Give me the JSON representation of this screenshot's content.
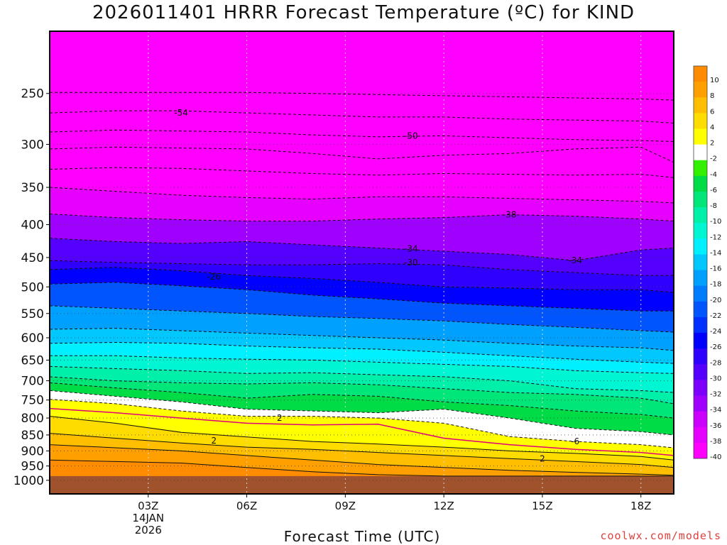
{
  "header": {
    "title": "2026011401 HRRR Forecast Temperature (ºC) for KIND"
  },
  "footer": {
    "xlabel": "Forecast Time (UTC)",
    "credit": "coolwx.com/models"
  },
  "colors": {
    "ground": "#a0522d",
    "bands": [
      "#ff00ff",
      "#e600ff",
      "#cc00ff",
      "#a000ff",
      "#7d00ff",
      "#5500ff",
      "#3000ff",
      "#0000ff",
      "#0030ff",
      "#0055ff",
      "#007dff",
      "#00a0ff",
      "#00c8ff",
      "#00f0ff",
      "#00f5d2",
      "#00f0aa",
      "#00e678",
      "#00dc46",
      "#32f000",
      "#ffffff",
      "#ffff00",
      "#ffdc00",
      "#ffbe00",
      "#ffa000",
      "#ff8c00"
    ]
  },
  "chart_data": {
    "type": "heatmap",
    "title": "2026011401 HRRR Forecast Temperature (ºC) for KIND",
    "xlabel": "Forecast Time (UTC)",
    "ylabel": "",
    "x_ticks": [
      "03Z",
      "06Z",
      "09Z",
      "12Z",
      "15Z",
      "18Z"
    ],
    "x_tick_hours": [
      3,
      6,
      9,
      12,
      15,
      18
    ],
    "x_date_label": [
      "14JAN",
      "2026"
    ],
    "xlim": [
      0,
      19
    ],
    "y_ticks": [
      250,
      300,
      350,
      400,
      450,
      500,
      550,
      600,
      650,
      700,
      750,
      800,
      850,
      900,
      950,
      1000
    ],
    "ylim": [
      1050,
      200
    ],
    "y_scale": "log",
    "grid": true,
    "colorbar": {
      "labels": [
        10,
        8,
        6,
        4,
        2,
        -2,
        -4,
        -6,
        -8,
        -10,
        -12,
        -14,
        -16,
        -18,
        -20,
        -22,
        -24,
        -26,
        -28,
        -30,
        -32,
        -34,
        -36,
        -38,
        -40
      ]
    },
    "ground_level_hpa": 985,
    "forecast_hours": [
      0,
      2,
      4,
      6,
      8,
      10,
      12,
      14,
      16,
      18,
      19
    ],
    "isotherms": [
      {
        "temp": -55,
        "pressure": [
          249,
          249,
          249,
          249,
          250,
          251,
          252,
          253,
          254,
          255,
          256
        ]
      },
      {
        "temp": -54,
        "pressure": [
          268,
          266,
          266,
          268,
          270,
          272,
          272,
          274,
          275,
          276,
          278
        ]
      },
      {
        "temp": -50,
        "pressure": [
          287,
          285,
          286,
          287,
          290,
          292,
          291,
          293,
          295,
          296,
          297
        ]
      },
      {
        "temp": -48,
        "pressure": [
          305,
          303,
          304,
          305,
          310,
          316,
          312,
          310,
          305,
          303,
          320
        ]
      },
      {
        "temp": -44,
        "pressure": [
          328,
          326,
          327,
          330,
          333,
          335,
          333,
          334,
          335,
          334,
          338
        ]
      },
      {
        "temp": -42,
        "pressure": [
          350,
          355,
          360,
          363,
          365,
          362,
          362,
          364,
          366,
          368,
          370
        ]
      },
      {
        "temp": -38,
        "pressure": [
          385,
          390,
          393,
          395,
          395,
          392,
          390,
          386,
          388,
          392,
          395
        ]
      },
      {
        "temp": -34,
        "pressure": [
          420,
          425,
          428,
          425,
          430,
          435,
          440,
          445,
          455,
          438,
          435
        ]
      },
      {
        "temp": -30,
        "pressure": [
          455,
          458,
          460,
          462,
          462,
          460,
          462,
          470,
          475,
          480,
          480
        ]
      },
      {
        "temp": -28,
        "pressure": [
          470,
          466,
          472,
          480,
          485,
          492,
          500,
          502,
          505,
          505,
          510
        ]
      },
      {
        "temp": -26,
        "pressure": [
          495,
          492,
          498,
          505,
          515,
          522,
          530,
          535,
          540,
          545,
          545
        ]
      },
      {
        "temp": -22,
        "pressure": [
          535,
          540,
          545,
          550,
          556,
          560,
          565,
          572,
          578,
          585,
          588
        ]
      },
      {
        "temp": -18,
        "pressure": [
          582,
          580,
          585,
          590,
          595,
          600,
          605,
          612,
          618,
          622,
          628
        ]
      },
      {
        "temp": -16,
        "pressure": [
          612,
          610,
          612,
          618,
          622,
          625,
          632,
          640,
          648,
          655,
          658
        ]
      },
      {
        "temp": -14,
        "pressure": [
          640,
          640,
          645,
          648,
          650,
          655,
          660,
          665,
          675,
          680,
          682
        ]
      },
      {
        "temp": -12,
        "pressure": [
          665,
          670,
          675,
          682,
          680,
          685,
          690,
          700,
          720,
          725,
          730
        ]
      },
      {
        "temp": -10,
        "pressure": [
          690,
          700,
          705,
          708,
          705,
          710,
          720,
          730,
          735,
          745,
          760
        ]
      },
      {
        "temp": -8,
        "pressure": [
          705,
          718,
          730,
          745,
          735,
          740,
          755,
          765,
          780,
          790,
          800
        ]
      },
      {
        "temp": -6,
        "pressure": [
          725,
          740,
          755,
          775,
          780,
          785,
          775,
          800,
          830,
          840,
          850
        ]
      },
      {
        "temp": -2,
        "pressure": [
          748,
          760,
          780,
          795,
          795,
          800,
          815,
          855,
          870,
          880,
          890
        ]
      },
      {
        "temp": 0,
        "pressure": [
          773,
          785,
          800,
          815,
          820,
          818,
          860,
          880,
          895,
          905,
          915
        ]
      },
      {
        "temp": 2,
        "pressure": [
          795,
          815,
          842,
          856,
          870,
          878,
          888,
          900,
          908,
          918,
          930
        ]
      },
      {
        "temp": 4,
        "pressure": [
          845,
          860,
          875,
          888,
          895,
          905,
          915,
          925,
          935,
          945,
          955
        ]
      },
      {
        "temp": 6,
        "pressure": [
          880,
          890,
          900,
          915,
          930,
          945,
          955,
          965,
          972,
          978,
          982
        ]
      },
      {
        "temp": 8,
        "pressure": [
          930,
          935,
          940,
          955,
          970,
          980,
          985,
          985,
          985,
          985,
          985
        ]
      }
    ],
    "contour_labels": [
      {
        "text": "-54",
        "hour": 4.0,
        "pressure": 268
      },
      {
        "text": "-50",
        "hour": 11.0,
        "pressure": 291
      },
      {
        "text": "-38",
        "hour": 14.0,
        "pressure": 386
      },
      {
        "text": "-34",
        "hour": 11.0,
        "pressure": 436
      },
      {
        "text": "-34",
        "hour": 16.0,
        "pressure": 455
      },
      {
        "text": "-30",
        "hour": 11.0,
        "pressure": 458
      },
      {
        "text": "-26",
        "hour": 5.0,
        "pressure": 482
      },
      {
        "text": "-6",
        "hour": 16.0,
        "pressure": 870
      },
      {
        "text": "2",
        "hour": 7.0,
        "pressure": 800
      },
      {
        "text": "2",
        "hour": 5.0,
        "pressure": 868
      },
      {
        "text": "2",
        "hour": 15.0,
        "pressure": 926
      }
    ]
  }
}
